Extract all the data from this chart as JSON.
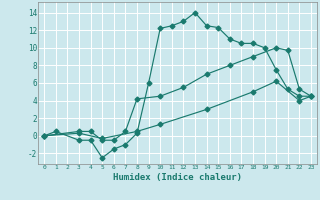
{
  "title": "",
  "xlabel": "Humidex (Indice chaleur)",
  "xlim": [
    -0.5,
    23.5
  ],
  "ylim": [
    -3.2,
    15.2
  ],
  "yticks": [
    -2,
    0,
    2,
    4,
    6,
    8,
    10,
    12,
    14
  ],
  "xticks": [
    0,
    1,
    2,
    3,
    4,
    5,
    6,
    7,
    8,
    9,
    10,
    11,
    12,
    13,
    14,
    15,
    16,
    17,
    18,
    19,
    20,
    21,
    22,
    23
  ],
  "bg_color": "#cce8ed",
  "grid_color": "#ffffff",
  "line_color": "#1a7a6e",
  "line1_x": [
    0,
    1,
    3,
    4,
    5,
    6,
    7,
    8,
    9,
    10,
    11,
    12,
    13,
    14,
    15,
    16,
    17,
    18,
    19,
    20,
    21,
    22,
    23
  ],
  "line1_y": [
    0,
    0.5,
    -0.5,
    -0.5,
    -2.5,
    -1.5,
    -1.0,
    0.3,
    6.0,
    12.2,
    12.5,
    13.0,
    14.0,
    12.5,
    12.3,
    11.0,
    10.5,
    10.5,
    10.0,
    7.5,
    5.3,
    4.5,
    4.5
  ],
  "line2_x": [
    0,
    3,
    4,
    5,
    6,
    7,
    8,
    10,
    12,
    14,
    16,
    18,
    20,
    21,
    22,
    23
  ],
  "line2_y": [
    0,
    0.5,
    0.5,
    -0.5,
    -0.5,
    0.5,
    4.2,
    4.5,
    5.5,
    7.0,
    8.0,
    9.0,
    10.0,
    9.7,
    5.3,
    4.5
  ],
  "line3_x": [
    0,
    3,
    5,
    8,
    10,
    14,
    18,
    20,
    22,
    23
  ],
  "line3_y": [
    0,
    0.3,
    -0.3,
    0.5,
    1.3,
    3.0,
    5.0,
    6.2,
    4.0,
    4.5
  ]
}
